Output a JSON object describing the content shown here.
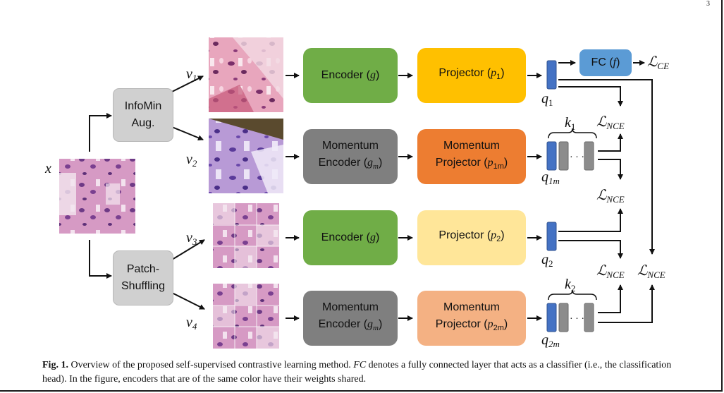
{
  "page_number": "3",
  "labels": {
    "x": "x",
    "v1": "v",
    "v1_sub": "1",
    "v2": "v",
    "v2_sub": "2",
    "v3": "v",
    "v3_sub": "3",
    "v4": "v",
    "v4_sub": "4",
    "q1": "q",
    "q1_sub": "1",
    "q1m": "q",
    "q1m_sub": "1m",
    "q2": "q",
    "q2_sub": "2",
    "q2m": "q",
    "q2m_sub": "2m",
    "k1": "k",
    "k1_sub": "1",
    "k2": "k",
    "k2_sub": "2",
    "loss_ce": "ℒ",
    "loss_ce_sub": "CE",
    "loss_nce": "ℒ",
    "loss_nce_sub": "NCE",
    "dots": "· · ·"
  },
  "boxes": {
    "infomin_line1": "InfoMin",
    "infomin_line2": "Aug.",
    "patch_line1": "Patch-",
    "patch_line2": "Shuffling",
    "encoder": "Encoder (",
    "encoder_sym": "g",
    "momentum": "Momentum",
    "mom_encoder": "Encoder (",
    "mom_encoder_sym": "g",
    "mom_encoder_sub": "m",
    "projector": "Projector (",
    "projector_sym": "p",
    "p1_sub": "1",
    "p2_sub": "2",
    "p1m_sub": "1m",
    "p2m_sub": "2m",
    "close": ")",
    "fc": "FC (",
    "fc_sym": "f"
  },
  "caption": {
    "fig_label": "Fig. 1.",
    "part1": " Overview of the proposed self-supervised contrastive learning method. ",
    "fc_term": "FC",
    "part2": " denotes a fully connected layer that acts as a classifier (i.e., the classification head). In the figure, encoders that are of the same color have their weights shared."
  },
  "colors": {
    "aug_box": "#d0d0d0",
    "encoder": "#70ad47",
    "momentum_encoder": "#7f7f7f",
    "projector_1": "#ffc000",
    "projector_1m": "#ed7d31",
    "projector_2": "#ffe699",
    "projector_2m": "#f4b183",
    "fc": "#5b9bd5",
    "query_vec": "#4472c4",
    "key_vec": "#8c8c8c"
  }
}
